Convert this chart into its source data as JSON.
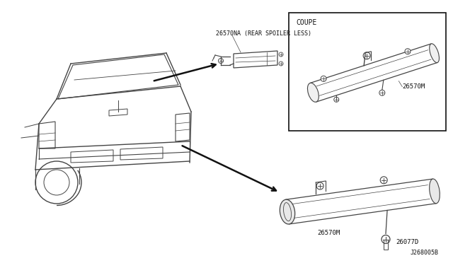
{
  "bg_color": "#ffffff",
  "lc": "#444444",
  "dc": "#111111",
  "part_numbers": {
    "rear_spoiler_less_label": "26570NA (REAR SPOILER LESS)",
    "coupe_label": "26570M",
    "coupe_box_title": "COUPE",
    "sedan_lamp_label": "26570M",
    "bolt_label": "26077D"
  },
  "diagram_id": "J268005B",
  "figsize": [
    6.4,
    3.72
  ],
  "dpi": 100
}
